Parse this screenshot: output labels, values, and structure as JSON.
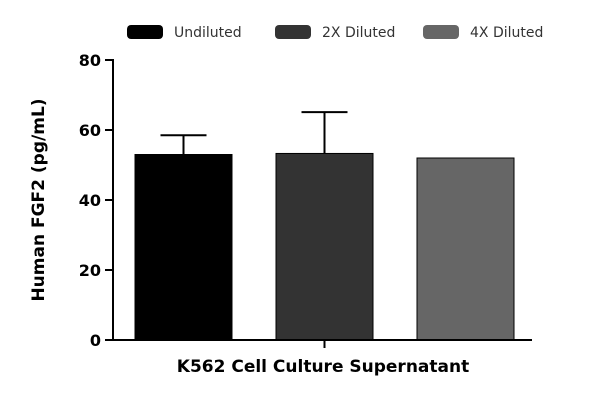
{
  "chart_data": {
    "type": "bar",
    "xlabel": "K562 Cell Culture Supernatant",
    "ylabel": "Human FGF2 (pg/mL)",
    "ylim": [
      0,
      80
    ],
    "yticks": [
      0,
      20,
      40,
      60,
      80
    ],
    "legend_position": "top",
    "series": [
      {
        "name": "Undiluted",
        "value": 53,
        "error": 5.5,
        "color": "#000000"
      },
      {
        "name": "2X Diluted",
        "value": 53.3,
        "error": 11.8,
        "color": "#333333"
      },
      {
        "name": "4X Diluted",
        "value": 52,
        "error": 0,
        "color": "#666666"
      }
    ]
  }
}
